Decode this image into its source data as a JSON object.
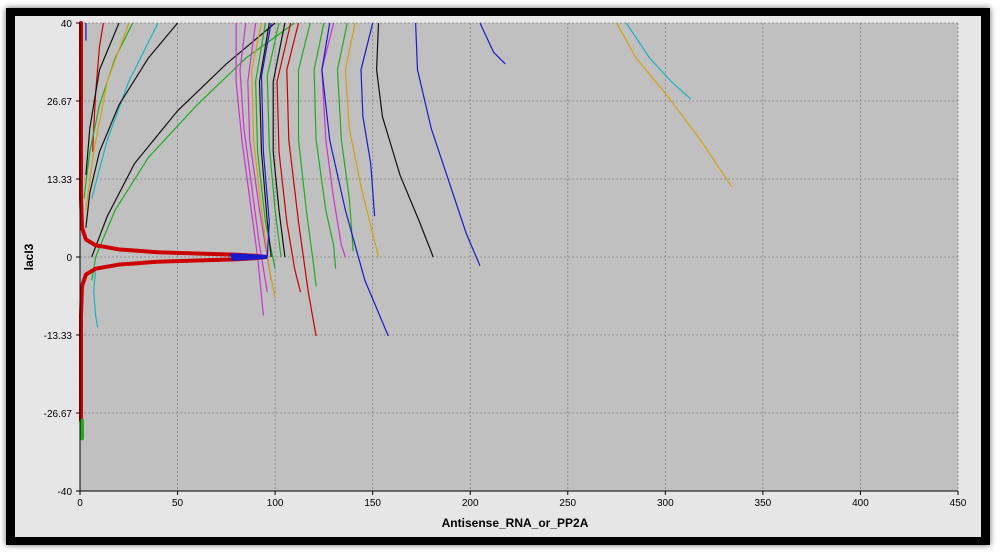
{
  "chart_data": {
    "type": "line",
    "title": "",
    "xlabel": "Antisense_RNA_or_PP2A",
    "ylabel": "lacI3",
    "xlim": [
      0,
      450
    ],
    "ylim": [
      -40,
      40
    ],
    "x_ticks": [
      "0",
      "50",
      "100",
      "150",
      "200",
      "250",
      "300",
      "350",
      "400",
      "450"
    ],
    "y_ticks": [
      "40",
      "26.67",
      "13.33",
      "0",
      "-13.33",
      "-26.67",
      "-40"
    ],
    "grid": true,
    "background_color": "#c0c0c0",
    "grid_color": "#808080",
    "colors": {
      "red": "#cc0000",
      "black": "#111111",
      "green": "#22aa22",
      "blue": "#1a1acc",
      "magenta": "#cc33cc",
      "orange": "#d4a017",
      "cyan": "#20b0c0",
      "dark_red": "#aa1111"
    },
    "series": [
      {
        "color": "red",
        "points": [
          [
            12,
            40
          ],
          [
            10,
            36
          ],
          [
            8,
            28
          ],
          [
            7,
            22
          ],
          [
            6.5,
            18
          ]
        ]
      },
      {
        "color": "green",
        "points": [
          [
            27,
            40
          ],
          [
            18,
            34
          ],
          [
            10,
            26
          ],
          [
            5,
            18
          ],
          [
            2,
            10
          ]
        ]
      },
      {
        "color": "orange",
        "points": [
          [
            25,
            40
          ],
          [
            14,
            30
          ],
          [
            7,
            18
          ],
          [
            3,
            8
          ]
        ]
      },
      {
        "color": "black",
        "points": [
          [
            20,
            40
          ],
          [
            10,
            32
          ],
          [
            5,
            22
          ],
          [
            3,
            14
          ]
        ]
      },
      {
        "color": "cyan",
        "points": [
          [
            40,
            40
          ],
          [
            25,
            30
          ],
          [
            14,
            20
          ],
          [
            6,
            10
          ]
        ]
      },
      {
        "color": "blue",
        "points": [
          [
            3,
            40
          ],
          [
            3,
            37
          ]
        ]
      },
      {
        "color": "green",
        "points": [
          [
            110,
            40
          ],
          [
            85,
            34
          ],
          [
            60,
            26
          ],
          [
            35,
            17
          ],
          [
            18,
            8
          ],
          [
            8,
            0
          ],
          [
            6,
            -4
          ]
        ]
      },
      {
        "color": "black",
        "points": [
          [
            100,
            40
          ],
          [
            75,
            33
          ],
          [
            50,
            25
          ],
          [
            28,
            16
          ],
          [
            14,
            7
          ],
          [
            6,
            0
          ]
        ]
      },
      {
        "color": "black",
        "points": [
          [
            50,
            40
          ],
          [
            35,
            34
          ],
          [
            20,
            26
          ],
          [
            10,
            18
          ],
          [
            5,
            11
          ],
          [
            3,
            5
          ]
        ]
      },
      {
        "color": "cyan",
        "points": [
          [
            8,
            -2
          ],
          [
            7,
            -6
          ],
          [
            8,
            -10
          ],
          [
            9,
            -12
          ]
        ]
      },
      {
        "color": "magenta",
        "points": [
          [
            85,
            40
          ],
          [
            82,
            32
          ],
          [
            84,
            22
          ],
          [
            88,
            12
          ],
          [
            92,
            2
          ],
          [
            96,
            -6
          ]
        ]
      },
      {
        "color": "magenta",
        "points": [
          [
            80,
            40
          ],
          [
            80,
            30
          ],
          [
            83,
            20
          ],
          [
            87,
            10
          ],
          [
            91,
            0
          ],
          [
            94,
            -10
          ]
        ]
      },
      {
        "color": "magenta",
        "points": [
          [
            90,
            40
          ],
          [
            86,
            30
          ],
          [
            87,
            20
          ],
          [
            92,
            8
          ],
          [
            98,
            -4
          ]
        ]
      },
      {
        "color": "orange",
        "points": [
          [
            93,
            40
          ],
          [
            88,
            32
          ],
          [
            89,
            20
          ],
          [
            93,
            8
          ],
          [
            97,
            -2
          ],
          [
            100,
            -7
          ]
        ]
      },
      {
        "color": "green",
        "points": [
          [
            95,
            40
          ],
          [
            90,
            30
          ],
          [
            91,
            18
          ],
          [
            95,
            6
          ],
          [
            100,
            -2
          ]
        ]
      },
      {
        "color": "black",
        "points": [
          [
            97,
            40
          ],
          [
            92,
            30
          ],
          [
            93,
            18
          ],
          [
            96,
            6
          ],
          [
            98,
            0
          ]
        ]
      },
      {
        "color": "blue",
        "points": [
          [
            98,
            40
          ],
          [
            93,
            31
          ],
          [
            94,
            18
          ],
          [
            97,
            6
          ],
          [
            96,
            0
          ]
        ]
      },
      {
        "color": "green",
        "points": [
          [
            102,
            40
          ],
          [
            96,
            31
          ],
          [
            97,
            19
          ],
          [
            100,
            8
          ],
          [
            103,
            0
          ]
        ]
      },
      {
        "color": "black",
        "points": [
          [
            105,
            40
          ],
          [
            99,
            30
          ],
          [
            99,
            18
          ],
          [
            102,
            8
          ],
          [
            105,
            0
          ]
        ]
      },
      {
        "color": "red",
        "points": [
          [
            108,
            40
          ],
          [
            101,
            30
          ],
          [
            102,
            18
          ],
          [
            106,
            6
          ],
          [
            110,
            -2
          ],
          [
            113,
            -6
          ]
        ]
      },
      {
        "color": "red",
        "points": [
          [
            112,
            40
          ],
          [
            106,
            32
          ],
          [
            107,
            20
          ],
          [
            112,
            6
          ],
          [
            117,
            -6
          ],
          [
            121,
            -13.5
          ]
        ]
      },
      {
        "color": "green",
        "points": [
          [
            118,
            40
          ],
          [
            112,
            32
          ],
          [
            112,
            20
          ],
          [
            116,
            8
          ],
          [
            120,
            -2
          ],
          [
            121,
            -5
          ]
        ]
      },
      {
        "color": "green",
        "points": [
          [
            125,
            40
          ],
          [
            120,
            32
          ],
          [
            121,
            20
          ],
          [
            126,
            8
          ],
          [
            130,
            2
          ],
          [
            131,
            -2
          ]
        ]
      },
      {
        "color": "magenta",
        "points": [
          [
            130,
            40
          ],
          [
            124,
            32
          ],
          [
            126,
            20
          ],
          [
            130,
            10
          ],
          [
            134,
            2
          ],
          [
            136,
            0
          ]
        ]
      },
      {
        "color": "green",
        "points": [
          [
            137,
            40
          ],
          [
            132,
            32
          ],
          [
            134,
            20
          ],
          [
            138,
            10
          ],
          [
            140,
            1
          ]
        ]
      },
      {
        "color": "blue",
        "points": [
          [
            128,
            40
          ],
          [
            124,
            32
          ],
          [
            128,
            20
          ],
          [
            136,
            8
          ],
          [
            146,
            -4
          ],
          [
            158,
            -13.5
          ]
        ]
      },
      {
        "color": "orange",
        "points": [
          [
            141,
            40
          ],
          [
            136,
            32
          ],
          [
            138,
            22
          ],
          [
            144,
            12
          ],
          [
            150,
            4
          ],
          [
            153,
            0
          ]
        ]
      },
      {
        "color": "blue",
        "points": [
          [
            150,
            40
          ],
          [
            144,
            32
          ],
          [
            145,
            24
          ],
          [
            149,
            16
          ],
          [
            151,
            7
          ]
        ]
      },
      {
        "color": "black",
        "points": [
          [
            153,
            40
          ],
          [
            152,
            32
          ],
          [
            155,
            24
          ],
          [
            164,
            14
          ],
          [
            174,
            6
          ],
          [
            181,
            0
          ]
        ]
      },
      {
        "color": "blue",
        "points": [
          [
            172,
            40
          ],
          [
            173,
            32
          ],
          [
            180,
            22
          ],
          [
            190,
            12
          ],
          [
            198,
            4
          ],
          [
            205,
            -1.5
          ]
        ]
      },
      {
        "color": "blue",
        "points": [
          [
            205,
            40
          ],
          [
            212,
            35
          ],
          [
            218,
            33
          ]
        ]
      },
      {
        "color": "orange",
        "points": [
          [
            275,
            40
          ],
          [
            285,
            34
          ],
          [
            300,
            28
          ],
          [
            318,
            20
          ],
          [
            334,
            12
          ]
        ]
      },
      {
        "color": "cyan",
        "points": [
          [
            280,
            40
          ],
          [
            292,
            34
          ],
          [
            303,
            30
          ],
          [
            313,
            27
          ]
        ]
      }
    ],
    "marker_series": [
      {
        "color": "red",
        "points": [
          [
            0.5,
            40
          ],
          [
            0.5,
            30
          ],
          [
            0.5,
            20
          ],
          [
            0.5,
            10
          ],
          [
            1,
            5
          ],
          [
            3,
            3
          ],
          [
            8,
            2
          ],
          [
            20,
            1.3
          ],
          [
            40,
            0.8
          ],
          [
            60,
            0.6
          ],
          [
            80,
            0.4
          ],
          [
            90,
            0.2
          ],
          [
            95,
            0
          ]
        ]
      },
      {
        "color": "red",
        "points": [
          [
            95,
            0
          ],
          [
            90,
            -0.2
          ],
          [
            80,
            -0.4
          ],
          [
            60,
            -0.6
          ],
          [
            40,
            -0.8
          ],
          [
            20,
            -1.3
          ],
          [
            8,
            -2
          ],
          [
            3,
            -3
          ],
          [
            1,
            -5
          ],
          [
            0.5,
            -10
          ],
          [
            0.5,
            -20
          ],
          [
            0.5,
            -28
          ]
        ]
      },
      {
        "color": "blue",
        "points": [
          [
            78,
            0.3
          ],
          [
            85,
            0.2
          ],
          [
            95,
            0
          ],
          [
            85,
            -0.2
          ],
          [
            78,
            -0.3
          ]
        ]
      },
      {
        "color": "green",
        "points": [
          [
            1,
            -28
          ],
          [
            1,
            -31
          ]
        ]
      }
    ]
  }
}
